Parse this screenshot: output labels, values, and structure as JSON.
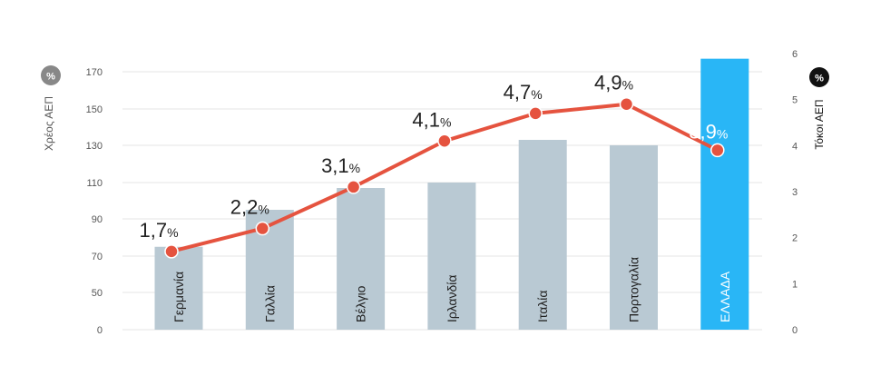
{
  "chart_data": {
    "type": "bar+line",
    "categories": [
      "Γερμανία",
      "Γαλλία",
      "Βέλγιο",
      "Ιρλανδία",
      "Ιταλία",
      "Πορτογαλία",
      "ΕΛΛΑΔΑ"
    ],
    "series": [
      {
        "name": "Χρέος ΑΕΠ",
        "type": "bar",
        "axis": "left",
        "values": [
          75,
          95,
          107,
          110,
          133,
          130,
          177
        ]
      },
      {
        "name": "Τόκοι ΑΕΠ",
        "type": "line",
        "axis": "right",
        "values": [
          1.7,
          2.2,
          3.1,
          4.1,
          4.7,
          4.9,
          3.9
        ],
        "labels": [
          "1,7",
          "2,2",
          "3,1",
          "4,1",
          "4,7",
          "4,9",
          "3,9"
        ]
      }
    ],
    "left_axis": {
      "title": "Χρέος ΑΕΠ",
      "badge": "%",
      "ticks": [
        0,
        50,
        70,
        90,
        110,
        130,
        150,
        170
      ],
      "tick_labels": [
        "0",
        "50",
        "70",
        "90",
        "110",
        "130",
        "150",
        "170"
      ]
    },
    "right_axis": {
      "title": "Τόκοι ΑΕΠ",
      "badge": "%",
      "ticks": [
        0,
        1,
        2,
        3,
        4,
        5,
        6
      ],
      "tick_labels": [
        "0",
        "1",
        "2",
        "3",
        "4",
        "5",
        "6"
      ],
      "ylim": [
        0,
        6
      ]
    },
    "label_suffix": "%",
    "highlight_category": "ΕΛΛΑΔΑ",
    "grid": true,
    "colors": {
      "bar": "#b9c9d3",
      "bar_highlight": "#29b6f6",
      "line": "#e5533f",
      "marker": "#e5533f",
      "grid": "#e6e6e6",
      "axis_text": "#555555",
      "badge_left": "#888888",
      "badge_right": "#111111"
    }
  }
}
